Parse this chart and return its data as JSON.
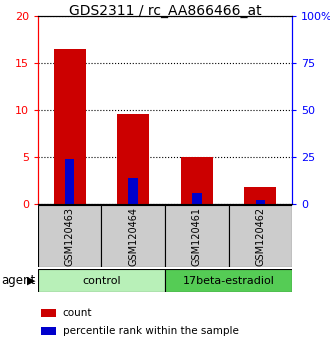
{
  "title": "GDS2311 / rc_AA866466_at",
  "samples": [
    "GSM120463",
    "GSM120464",
    "GSM120461",
    "GSM120462"
  ],
  "counts": [
    16.5,
    9.5,
    5.0,
    1.8
  ],
  "percentile_ranks_scaled": [
    4.8,
    2.7,
    1.1,
    0.4
  ],
  "bar_color_count": "#cc0000",
  "bar_color_pct": "#0000cc",
  "ylim_left": [
    0,
    20
  ],
  "ylim_right": [
    0,
    100
  ],
  "yticks_left": [
    0,
    5,
    10,
    15,
    20
  ],
  "yticks_right": [
    0,
    25,
    50,
    75,
    100
  ],
  "ytick_labels_left": [
    "0",
    "5",
    "10",
    "15",
    "20"
  ],
  "ytick_labels_right": [
    "0",
    "25",
    "50",
    "75",
    "100%"
  ],
  "bar_width": 0.5,
  "pct_bar_width": 0.15,
  "sample_bg_color": "#cccccc",
  "group_spans": [
    [
      0,
      2,
      "control",
      "#b8f0b8"
    ],
    [
      2,
      4,
      "17beta-estradiol",
      "#55cc55"
    ]
  ],
  "agent_label": "agent",
  "legend_count_label": "count",
  "legend_pct_label": "percentile rank within the sample",
  "title_fontsize": 10,
  "tick_fontsize": 8,
  "sample_fontsize": 7,
  "group_fontsize": 8,
  "legend_fontsize": 7.5
}
